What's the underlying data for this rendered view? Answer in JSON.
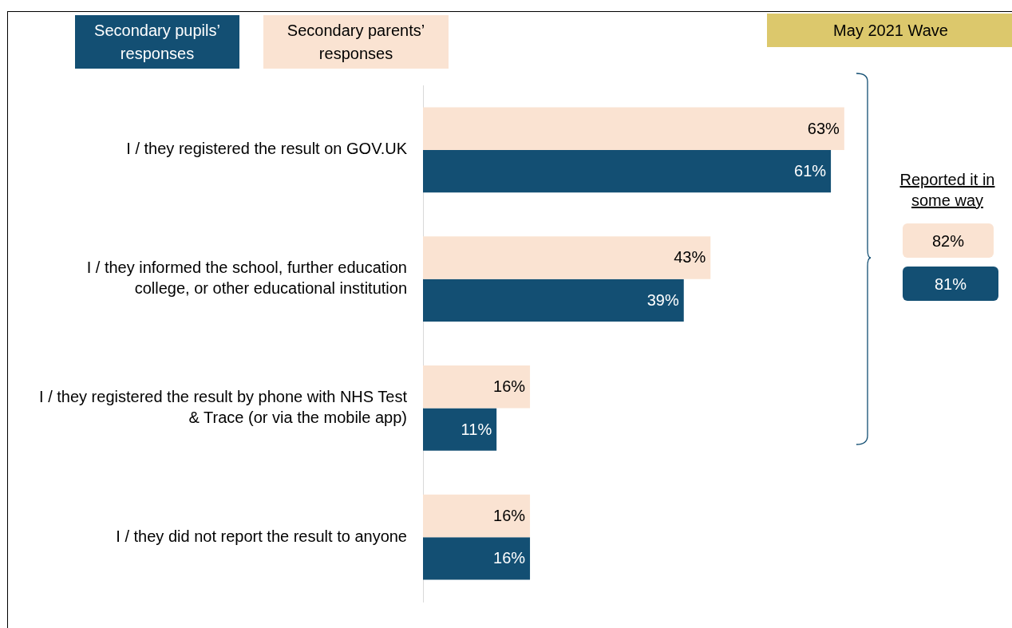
{
  "chart_data": {
    "type": "bar",
    "orientation": "horizontal",
    "legend": "top left",
    "categories": [
      "I / they registered the result on GOV.UK",
      "I / they informed the school, further education college, or other educational institution",
      "I / they registered the result by phone with NHS Test & Trace (or via the mobile app)",
      "I / they did not report the result to anyone"
    ],
    "series": [
      {
        "name": "Secondary parents’ responses",
        "color": "#fae3d2",
        "values": [
          63,
          43,
          16,
          16
        ],
        "value_labels": [
          "63%",
          "43%",
          "16%",
          "16%"
        ]
      },
      {
        "name": "Secondary pupils’ responses",
        "color": "#134f73",
        "values": [
          61,
          39,
          11,
          16
        ],
        "value_labels": [
          "61%",
          "39%",
          "11%",
          "16%"
        ]
      }
    ],
    "annotations": [
      "May 2021 Wave",
      "Reported it in some way",
      "82%",
      "81%"
    ]
  }
}
